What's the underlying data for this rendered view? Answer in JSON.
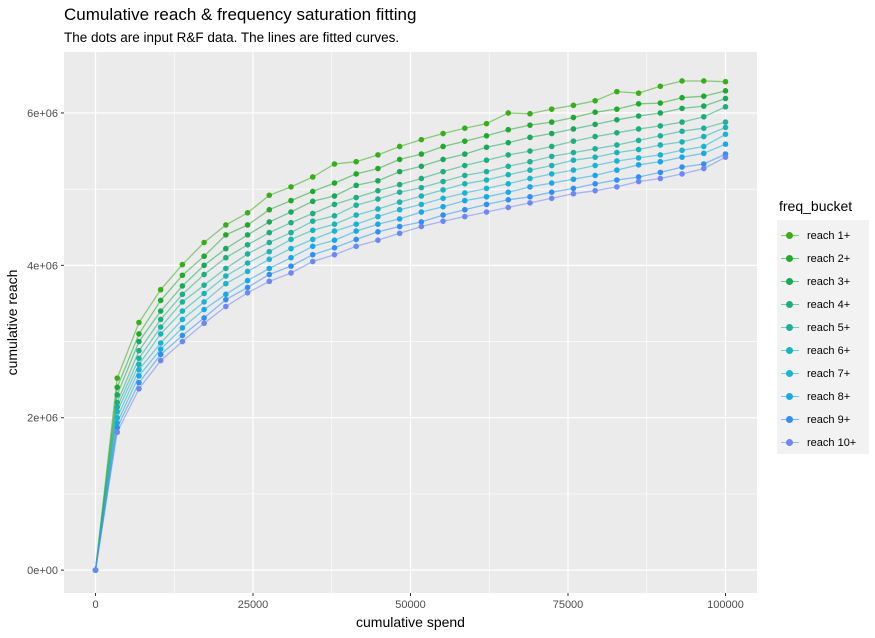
{
  "header": {
    "title": "Cumulative reach & frequency saturation fitting",
    "subtitle": "The dots are input R&F data. The lines are fitted curves."
  },
  "chart_data": {
    "type": "scatter",
    "title": "Cumulative reach & frequency saturation fitting",
    "subtitle": "The dots are input R&F data. The lines are fitted curves.",
    "xlabel": "cumulative spend",
    "ylabel": "cumulative reach",
    "xlim": [
      -5000,
      105000
    ],
    "ylim": [
      -300000,
      6800000
    ],
    "x_ticks": [
      0,
      25000,
      50000,
      75000,
      100000
    ],
    "x_tick_labels": [
      "0",
      "25000",
      "50000",
      "75000",
      "100000"
    ],
    "y_ticks": [
      0,
      2000000,
      4000000,
      6000000
    ],
    "y_tick_labels": [
      "0e+00",
      "2e+06",
      "4e+06",
      "6e+06"
    ],
    "grid": true,
    "legend_title": "freq_bucket",
    "legend_position": "right",
    "x": [
      0,
      3448,
      6897,
      10345,
      13793,
      17241,
      20690,
      24138,
      27586,
      31034,
      34483,
      37931,
      41379,
      44828,
      48276,
      51724,
      55172,
      58621,
      62069,
      65517,
      68966,
      72414,
      75862,
      79310,
      82759,
      86207,
      89655,
      93103,
      96552,
      100000
    ],
    "series": [
      {
        "name": "reach 1+",
        "color": "#3aad1b",
        "values": [
          0,
          2520000,
          3250000,
          3680000,
          4010000,
          4300000,
          4530000,
          4690000,
          4920000,
          5030000,
          5160000,
          5330000,
          5360000,
          5450000,
          5560000,
          5650000,
          5730000,
          5800000,
          5860000,
          6000000,
          5990000,
          6050000,
          6100000,
          6160000,
          6280000,
          6260000,
          6350000,
          6420000,
          6420000,
          6410000
        ]
      },
      {
        "name": "reach 2+",
        "color": "#22a82f",
        "values": [
          0,
          2400000,
          3100000,
          3540000,
          3870000,
          4120000,
          4400000,
          4530000,
          4730000,
          4850000,
          4970000,
          5080000,
          5200000,
          5270000,
          5390000,
          5460000,
          5560000,
          5630000,
          5700000,
          5780000,
          5840000,
          5880000,
          5940000,
          6010000,
          6050000,
          6120000,
          6130000,
          6200000,
          6220000,
          6290000
        ]
      },
      {
        "name": "reach 3+",
        "color": "#1aa85a",
        "values": [
          0,
          2300000,
          3000000,
          3400000,
          3730000,
          4000000,
          4220000,
          4400000,
          4570000,
          4700000,
          4840000,
          4910000,
          5050000,
          5110000,
          5230000,
          5300000,
          5390000,
          5460000,
          5550000,
          5610000,
          5680000,
          5730000,
          5790000,
          5850000,
          5910000,
          5960000,
          6000000,
          6060000,
          6090000,
          6190000
        ]
      },
      {
        "name": "reach 4+",
        "color": "#1fad7c",
        "values": [
          0,
          2200000,
          2880000,
          3290000,
          3620000,
          3880000,
          4100000,
          4270000,
          4430000,
          4560000,
          4680000,
          4800000,
          4890000,
          4980000,
          5060000,
          5140000,
          5230000,
          5310000,
          5380000,
          5450000,
          5500000,
          5560000,
          5630000,
          5690000,
          5740000,
          5790000,
          5830000,
          5880000,
          5950000,
          6080000
        ]
      },
      {
        "name": "reach 5+",
        "color": "#1fb09a",
        "values": [
          0,
          2140000,
          2780000,
          3190000,
          3520000,
          3740000,
          3960000,
          4150000,
          4300000,
          4430000,
          4580000,
          4650000,
          4790000,
          4870000,
          4960000,
          5020000,
          5100000,
          5180000,
          5230000,
          5300000,
          5360000,
          5430000,
          5480000,
          5530000,
          5580000,
          5640000,
          5700000,
          5760000,
          5800000,
          5880000
        ]
      },
      {
        "name": "reach 6+",
        "color": "#1ab3b6",
        "values": [
          0,
          2080000,
          2700000,
          3100000,
          3400000,
          3630000,
          3860000,
          4030000,
          4180000,
          4340000,
          4460000,
          4540000,
          4660000,
          4740000,
          4830000,
          4910000,
          4990000,
          5070000,
          5120000,
          5190000,
          5250000,
          5310000,
          5380000,
          5420000,
          5480000,
          5520000,
          5580000,
          5620000,
          5690000,
          5810000
        ]
      },
      {
        "name": "reach 7+",
        "color": "#1cb2d1",
        "values": [
          0,
          2000000,
          2630000,
          2980000,
          3290000,
          3520000,
          3760000,
          3920000,
          4080000,
          4220000,
          4340000,
          4450000,
          4540000,
          4640000,
          4730000,
          4800000,
          4880000,
          4950000,
          5010000,
          5070000,
          5140000,
          5200000,
          5250000,
          5310000,
          5370000,
          5410000,
          5450000,
          5510000,
          5560000,
          5720000
        ]
      },
      {
        "name": "reach 8+",
        "color": "#1aa7e8",
        "values": [
          0,
          1930000,
          2550000,
          2900000,
          3180000,
          3420000,
          3620000,
          3800000,
          3960000,
          4100000,
          4250000,
          4330000,
          4450000,
          4540000,
          4610000,
          4700000,
          4770000,
          4850000,
          4900000,
          4960000,
          5030000,
          5080000,
          5130000,
          5180000,
          5250000,
          5320000,
          5360000,
          5420000,
          5470000,
          5590000
        ]
      },
      {
        "name": "reach 9+",
        "color": "#2f8ff5",
        "values": [
          0,
          1870000,
          2460000,
          2830000,
          3080000,
          3310000,
          3550000,
          3710000,
          3880000,
          3990000,
          4140000,
          4230000,
          4340000,
          4440000,
          4510000,
          4570000,
          4660000,
          4730000,
          4800000,
          4860000,
          4900000,
          4960000,
          5010000,
          5070000,
          5120000,
          5160000,
          5220000,
          5290000,
          5330000,
          5460000
        ]
      },
      {
        "name": "reach 10+",
        "color": "#6e86f7",
        "values": [
          0,
          1810000,
          2380000,
          2750000,
          3000000,
          3240000,
          3460000,
          3640000,
          3790000,
          3900000,
          4050000,
          4140000,
          4250000,
          4330000,
          4420000,
          4510000,
          4580000,
          4640000,
          4700000,
          4760000,
          4820000,
          4880000,
          4940000,
          4980000,
          5030000,
          5100000,
          5140000,
          5200000,
          5270000,
          5420000
        ]
      }
    ]
  }
}
